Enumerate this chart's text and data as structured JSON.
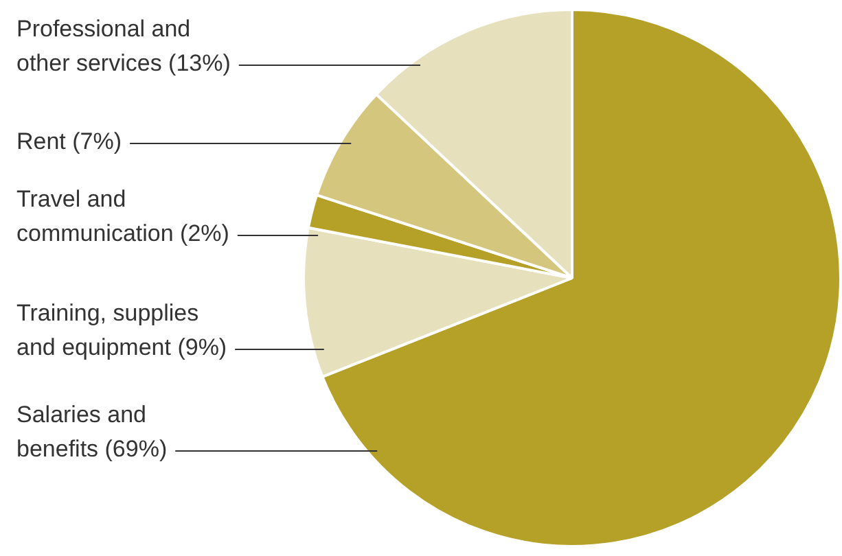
{
  "chart_data": {
    "type": "pie",
    "categories": [
      "Salaries and benefits (69%)",
      "Training, supplies and equipment (9%)",
      "Travel and communication (2%)",
      "Rent (7%)",
      "Professional and other services (13%)"
    ],
    "values": [
      69,
      9,
      2,
      7,
      13
    ],
    "colors": [
      "#b5a028",
      "#e6e0bd",
      "#b5a028",
      "#d4c67c",
      "#e6e0bd"
    ],
    "legend": false
  }
}
